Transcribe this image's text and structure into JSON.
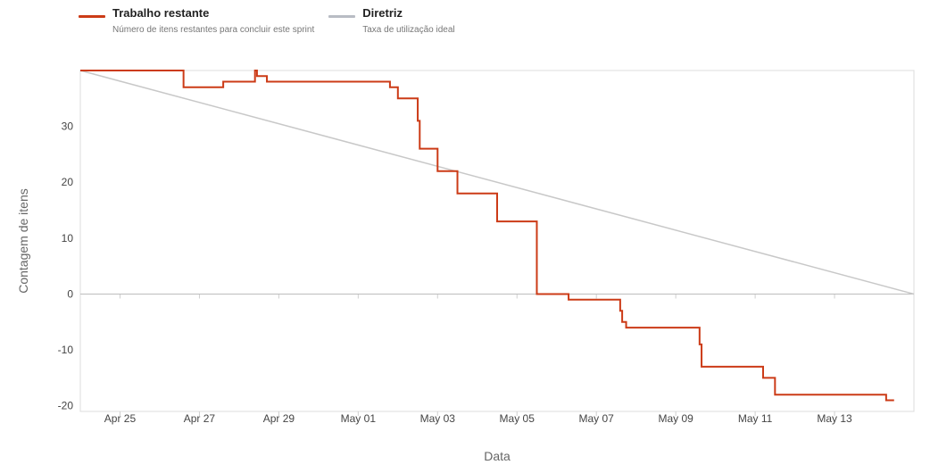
{
  "legend": [
    {
      "name": "Trabalho restante",
      "description": "Número de itens restantes para concluir este sprint",
      "color": "#cc3b17"
    },
    {
      "name": "Diretriz",
      "description": "Taxa de utilização ideal",
      "color": "#b8bcc4"
    }
  ],
  "chart_data": {
    "type": "line",
    "xlabel": "Data",
    "ylabel": "Contagem de itens",
    "ylim": [
      -21,
      40
    ],
    "y_ticks": [
      30,
      20,
      10,
      0,
      -10,
      -20
    ],
    "x_ticks": [
      "Apr 25",
      "Apr 27",
      "Apr 29",
      "May 01",
      "May 03",
      "May 05",
      "May 07",
      "May 09",
      "May 11",
      "May 13"
    ],
    "x_tick_offsets_days": [
      1,
      3,
      5,
      7,
      9,
      11,
      13,
      15,
      17,
      19
    ],
    "x_range_days": [
      0,
      21
    ],
    "grid": false,
    "legend_position": "top-left",
    "series": [
      {
        "name": "Trabalho restante",
        "color": "#cc3b17",
        "step": true,
        "points": [
          [
            0,
            40
          ],
          [
            2.6,
            37
          ],
          [
            3.6,
            38
          ],
          [
            4.4,
            40
          ],
          [
            4.45,
            39
          ],
          [
            4.7,
            38
          ],
          [
            7.8,
            37
          ],
          [
            8.0,
            35
          ],
          [
            8.5,
            31
          ],
          [
            8.55,
            26
          ],
          [
            9.0,
            22
          ],
          [
            9.5,
            18
          ],
          [
            10.5,
            13
          ],
          [
            11.5,
            0
          ],
          [
            12.3,
            -1
          ],
          [
            13.6,
            -3
          ],
          [
            13.65,
            -5
          ],
          [
            13.75,
            -6
          ],
          [
            15.6,
            -9
          ],
          [
            15.65,
            -13
          ],
          [
            17.2,
            -15
          ],
          [
            17.5,
            -18
          ],
          [
            20.3,
            -19
          ],
          [
            20.5,
            -19
          ]
        ]
      },
      {
        "name": "Diretriz",
        "color": "#c8c8c8",
        "step": false,
        "points": [
          [
            0,
            40
          ],
          [
            21,
            0
          ]
        ]
      }
    ]
  }
}
